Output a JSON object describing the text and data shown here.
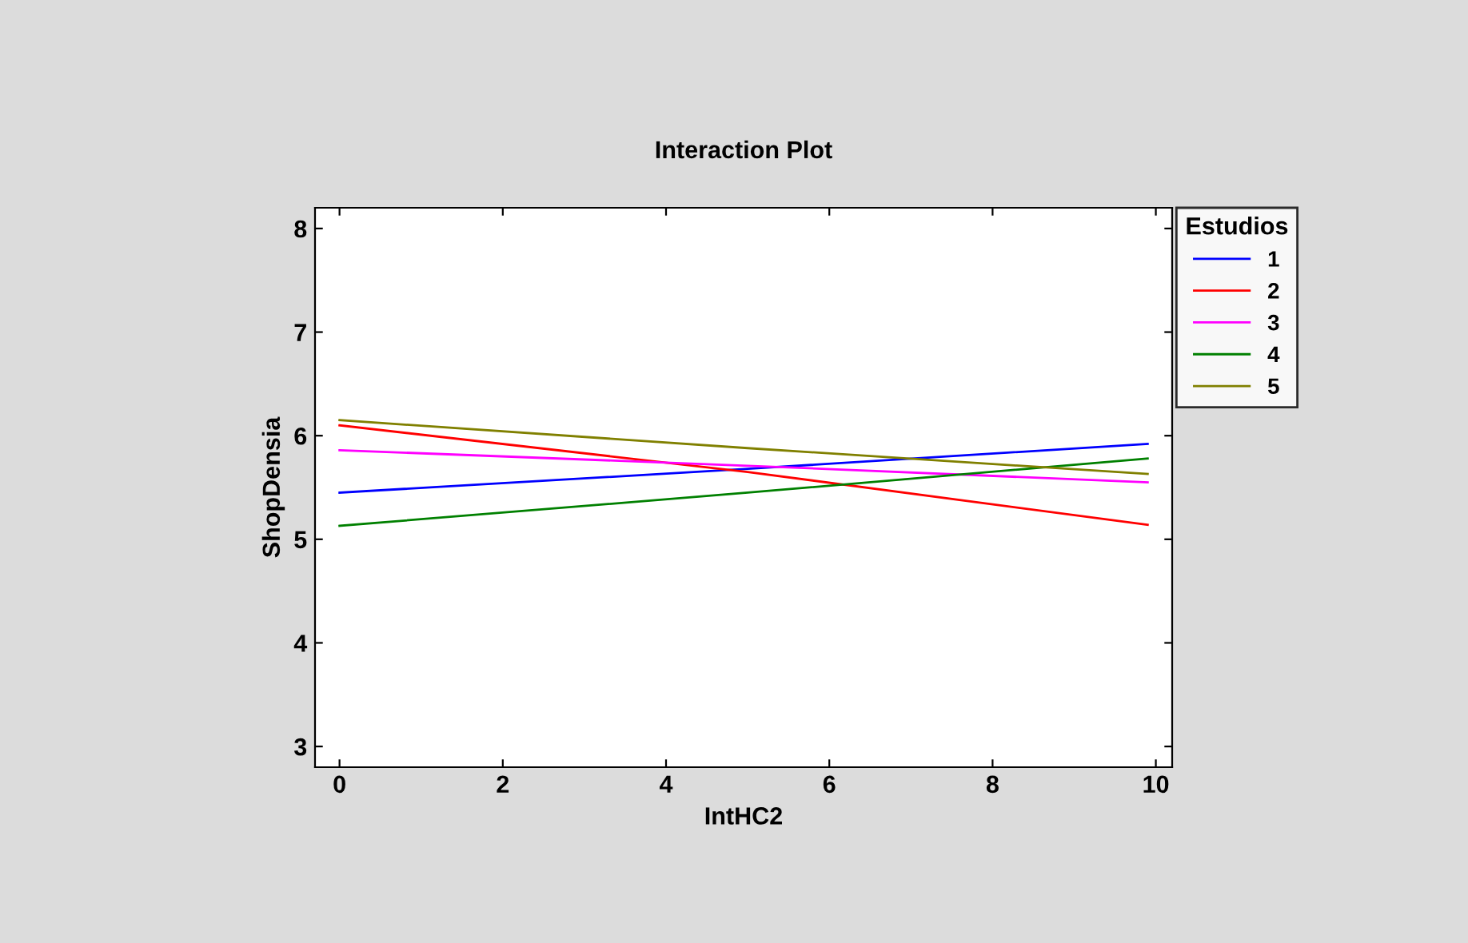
{
  "chart_data": {
    "type": "line",
    "title": "Interaction Plot",
    "xlabel": "IntHC2",
    "ylabel": "ShopDensia",
    "legend_title": "Estudios",
    "legend": "top right",
    "xlim": [
      -0.3,
      10.2
    ],
    "xticks": [
      0,
      2,
      4,
      6,
      8,
      10
    ],
    "ylim": [
      2.8,
      8.2
    ],
    "yticks": [
      3,
      4,
      5,
      6,
      7,
      8
    ],
    "grid": false,
    "marker": "none",
    "line_style": "solid",
    "x": [
      0,
      5,
      9.9
    ],
    "series": [
      {
        "name": "1",
        "color": "#0000ff",
        "values": [
          5.45,
          5.68,
          5.92
        ]
      },
      {
        "name": "2",
        "color": "#ff0000",
        "values": [
          6.1,
          5.65,
          5.14
        ]
      },
      {
        "name": "3",
        "color": "#ff00ff",
        "values": [
          5.86,
          5.71,
          5.55
        ]
      },
      {
        "name": "4",
        "color": "#008000",
        "values": [
          5.13,
          5.45,
          5.78
        ]
      },
      {
        "name": "5",
        "color": "#808000",
        "values": [
          6.15,
          5.88,
          5.63
        ]
      }
    ]
  }
}
